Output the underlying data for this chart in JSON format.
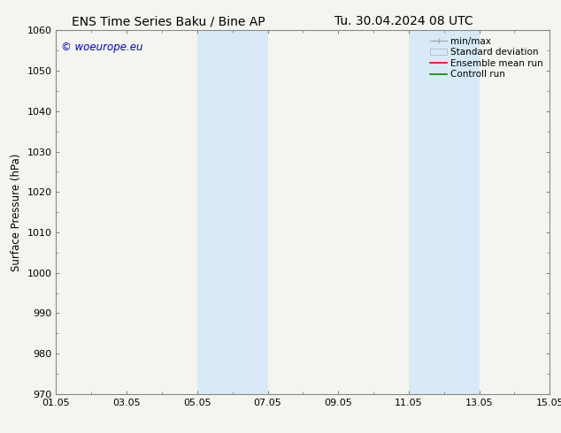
{
  "title_left": "ENS Time Series Baku / Bine AP",
  "title_right": "Tu. 30.04.2024 08 UTC",
  "ylabel": "Surface Pressure (hPa)",
  "ylim": [
    970,
    1060
  ],
  "yticks": [
    970,
    980,
    990,
    1000,
    1010,
    1020,
    1030,
    1040,
    1050,
    1060
  ],
  "xtick_labels": [
    "01.05",
    "03.05",
    "05.05",
    "07.05",
    "09.05",
    "11.05",
    "13.05",
    "15.05"
  ],
  "xtick_positions": [
    0,
    2,
    4,
    6,
    8,
    10,
    12,
    14
  ],
  "xlim": [
    0,
    14
  ],
  "shaded_bands": [
    {
      "x_start": 4.0,
      "x_end": 6.0,
      "color": "#d8eaf8"
    },
    {
      "x_start": 10.0,
      "x_end": 12.0,
      "color": "#d8eaf8"
    }
  ],
  "watermark_text": "© woeurope.eu",
  "watermark_color": "#0000cc",
  "legend_items": [
    {
      "label": "min/max",
      "color": "#aaaaaa",
      "type": "minmax"
    },
    {
      "label": "Standard deviation",
      "color": "#d8eaf8",
      "type": "box"
    },
    {
      "label": "Ensemble mean run",
      "color": "#ff0000",
      "type": "line"
    },
    {
      "label": "Controll run",
      "color": "#008800",
      "type": "line"
    }
  ],
  "title_fontsize": 10,
  "axis_fontsize": 8.5,
  "tick_fontsize": 8,
  "legend_fontsize": 7.5,
  "watermark_fontsize": 8.5,
  "background_color": "#f5f5f0",
  "plot_bg_color": "#f5f5f0",
  "spine_color": "#888888"
}
